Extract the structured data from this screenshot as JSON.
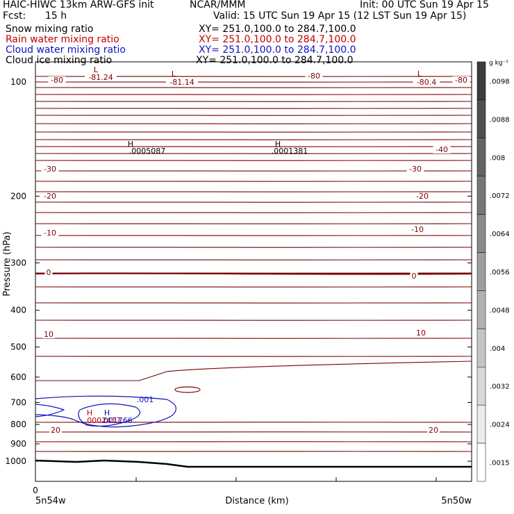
{
  "header": {
    "model": "HAIC-HIWC 13km ARW-GFS init",
    "org": "NCAR/MMM",
    "init": "Init: 00 UTC Sun 19 Apr 15",
    "fcst_label": "Fcst:",
    "fcst_value": "15 h",
    "valid": "Valid: 15 UTC Sun 19 Apr 15 (12 LST Sun 19 Apr 15)",
    "fields": [
      {
        "name": "Snow mixing ratio",
        "xy": "XY= 251.0,100.0 to 284.7,100.0",
        "color": "#000000"
      },
      {
        "name": "Rain water mixing ratio",
        "xy": "XY= 251.0,100.0 to 284.7,100.0",
        "color": "#c00000"
      },
      {
        "name": "Cloud water mixing ratio",
        "xy": "XY= 251.0,100.0 to 284.7,100.0",
        "color": "#1010c0"
      },
      {
        "name": "Cloud ice mixing ratio",
        "xy": "XY= 251.0,100.0 to 284.7,100.0",
        "color": "#000000"
      }
    ]
  },
  "chart_data": {
    "type": "cross-section contour",
    "ylabel": "Pressure (hPa)",
    "xlabel": "Distance (km)",
    "y_scale": "log-pressure (inverted)",
    "y_ticks": [
      100,
      200,
      300,
      400,
      500,
      600,
      700,
      800,
      900,
      1000
    ],
    "ylim": [
      1050,
      70
    ],
    "x_tick_label": "0",
    "x_start_label": "5n54w",
    "x_end_label": "5n50w",
    "temperature_contour_labels": [
      "-80",
      "-81.24",
      "-81.14",
      "-80",
      "-80.4",
      "-80",
      "-40",
      "-30",
      "-30",
      "-20",
      "-20",
      "-10",
      "-10",
      "0",
      "0",
      "10",
      "10",
      "20",
      "20"
    ],
    "temperature_contour_color": "#7a0000",
    "cloud_water_contour_label": ".001",
    "cloud_water_color": "#1010c0",
    "extrema": [
      {
        "marker": "L",
        "value": "-81.24"
      },
      {
        "marker": "L",
        "value": "-81.14"
      },
      {
        "marker": "L",
        "value": "-80.4"
      },
      {
        "marker": "H",
        "value": ".0005087"
      },
      {
        "marker": "H",
        "value": ".0001381"
      },
      {
        "marker": "H",
        "value": ".0002417"
      },
      {
        "marker": "H",
        "value": ".001766"
      }
    ],
    "colorbar": {
      "units": "g kg⁻¹",
      "labels": [
        ".0098",
        ".0088",
        ".008",
        ".0072",
        ".0064",
        ".0056",
        ".0048",
        ".004",
        ".0032",
        ".0024",
        ".0015"
      ]
    }
  }
}
